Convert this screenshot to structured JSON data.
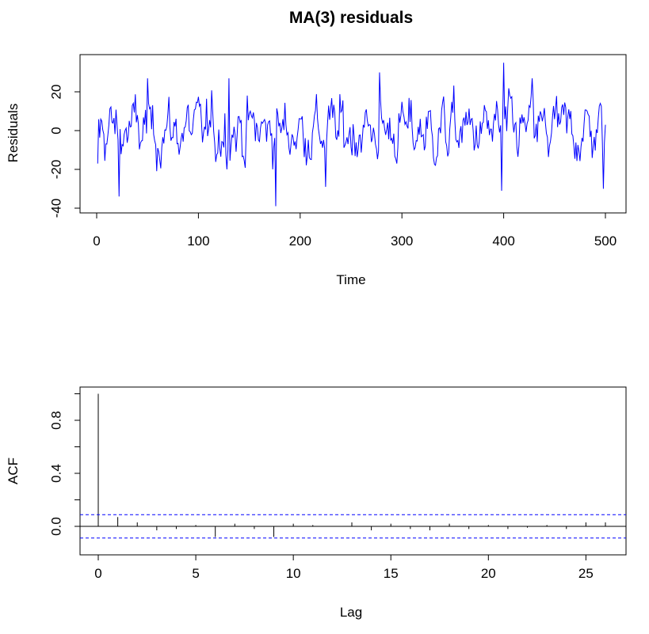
{
  "chart_data": [
    {
      "type": "line",
      "title": "MA(3) residuals",
      "xlabel": "Time",
      "ylabel": "Residuals",
      "xlim": [
        0,
        500
      ],
      "ylim": [
        -40,
        36
      ],
      "xticks": [
        0,
        100,
        200,
        300,
        400,
        500
      ],
      "yticks": [
        -40,
        -20,
        0,
        20
      ],
      "series_color": "#0000ff",
      "n_points": 500,
      "x_start": 1,
      "x_end": 500,
      "series_approx_range": [
        -40,
        35
      ],
      "notable_points": [
        {
          "x": 1,
          "y": -17
        },
        {
          "x": 22,
          "y": -34
        },
        {
          "x": 50,
          "y": 27
        },
        {
          "x": 130,
          "y": 27
        },
        {
          "x": 176,
          "y": -39
        },
        {
          "x": 225,
          "y": -29
        },
        {
          "x": 278,
          "y": 30
        },
        {
          "x": 398,
          "y": -31
        },
        {
          "x": 400,
          "y": 35
        },
        {
          "x": 428,
          "y": 27
        },
        {
          "x": 498,
          "y": -30
        },
        {
          "x": 500,
          "y": 3
        }
      ]
    },
    {
      "type": "bar",
      "xlabel": "Lag",
      "ylabel": "ACF",
      "xlim": [
        0,
        26
      ],
      "ylim": [
        -0.12,
        1.0
      ],
      "xticks": [
        0,
        5,
        10,
        15,
        20,
        25
      ],
      "yticks": [
        0.0,
        0.4,
        0.8
      ],
      "minor_yticks": [
        0.2,
        0.6,
        1.0
      ],
      "lags": [
        0,
        1,
        2,
        3,
        4,
        5,
        6,
        7,
        8,
        9,
        10,
        11,
        12,
        13,
        14,
        15,
        16,
        17,
        18,
        19,
        20,
        21,
        22,
        23,
        24,
        25,
        26
      ],
      "acf": [
        1.0,
        0.07,
        0.03,
        -0.03,
        -0.02,
        0.01,
        -0.08,
        0.02,
        -0.02,
        -0.08,
        0.02,
        0.01,
        0.0,
        0.03,
        -0.03,
        0.02,
        -0.02,
        -0.03,
        0.02,
        -0.02,
        0.01,
        -0.02,
        -0.01,
        0.01,
        -0.02,
        0.03,
        0.03
      ],
      "confidence_band": 0.088,
      "band_color": "#0000ff"
    }
  ]
}
